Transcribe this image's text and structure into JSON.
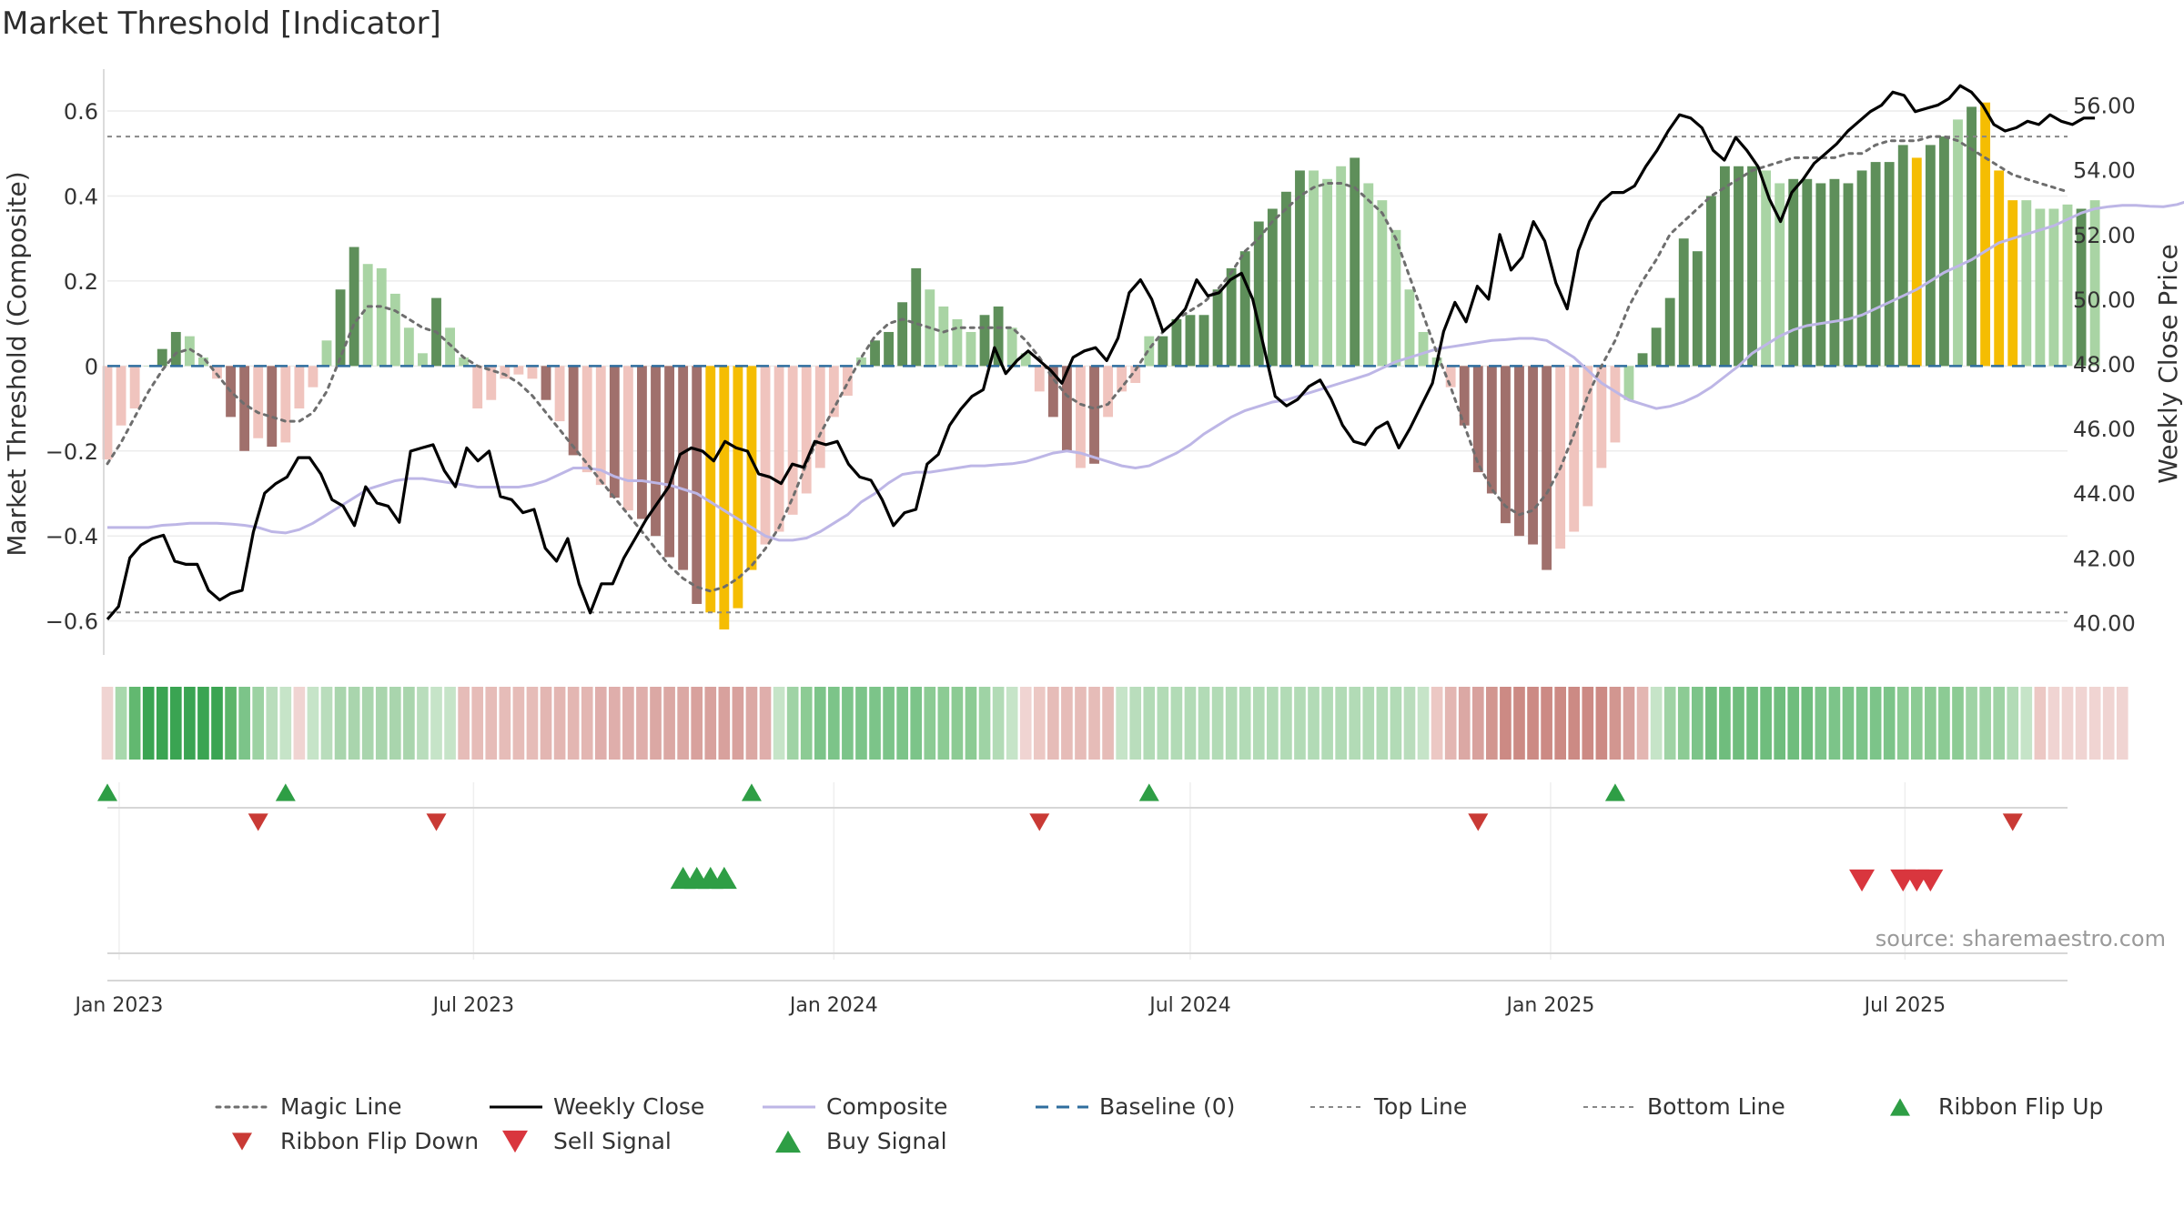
{
  "title": "Market Threshold [Indicator]",
  "source_note": "source: sharemaestro.com",
  "colors": {
    "pos_dark": "#5e8f5a",
    "pos_light": "#a9d4a4",
    "neg_dark": "#a0706c",
    "neg_light": "#f0c4be",
    "extreme": "#f5bd02",
    "magic": "#6e6e6e",
    "close": "#000000",
    "composite": "#bdb6e6",
    "baseline": "#2f6d9e",
    "threshold": "#888888",
    "buy": "#2e9e45",
    "sell": "#d9363e"
  },
  "chart_data": {
    "type": "bar",
    "title": "Market Threshold [Indicator]",
    "ylabel": "Market Threshold (Composite)",
    "y2label": "Weekly Close Price",
    "ylim": [
      -0.68,
      0.69
    ],
    "y2lim": [
      39.0,
      57.0
    ],
    "yticks": [
      -0.6,
      -0.4,
      -0.2,
      0,
      0.2,
      0.4,
      0.6
    ],
    "yticklabels": [
      "−0.6",
      "−0.4",
      "−0.2",
      "0",
      "0.2",
      "0.4",
      "0.6"
    ],
    "y2ticks": [
      40,
      42,
      44,
      46,
      48,
      50,
      52,
      54,
      56
    ],
    "y2ticklabels": [
      "40.00",
      "42.00",
      "44.00",
      "46.00",
      "48.00",
      "50.00",
      "52.00",
      "54.00",
      "56.00"
    ],
    "x_start": "2022-12-26",
    "x_step_days": 7,
    "xlim": [
      "2022-12-26",
      "2025-09-22"
    ],
    "xticks": [
      "2023-01-01",
      "2023-07-01",
      "2024-01-01",
      "2024-07-01",
      "2025-01-01",
      "2025-07-01"
    ],
    "xticklabels": [
      "Jan 2023",
      "Jul 2023",
      "Jan 2024",
      "Jul 2024",
      "Jan 2025",
      "Jul 2025"
    ],
    "top_line": 0.54,
    "bottom_line": -0.58,
    "grid": true,
    "legend_position": "bottom",
    "series": [
      {
        "name": "Composite Bars",
        "type": "bar",
        "values": [
          -0.22,
          -0.14,
          -0.1,
          0,
          0.04,
          0.08,
          0.07,
          0.02,
          -0.03,
          -0.12,
          -0.2,
          -0.17,
          -0.19,
          -0.18,
          -0.1,
          -0.05,
          0.06,
          0.18,
          0.28,
          0.24,
          0.23,
          0.17,
          0.09,
          0.03,
          0.16,
          0.09,
          0.02,
          -0.1,
          -0.08,
          -0.03,
          -0.02,
          -0.03,
          -0.08,
          -0.13,
          -0.21,
          -0.25,
          -0.28,
          -0.31,
          -0.34,
          -0.36,
          -0.4,
          -0.45,
          -0.48,
          -0.56,
          -0.58,
          -0.62,
          -0.57,
          -0.48,
          -0.42,
          -0.39,
          -0.35,
          -0.3,
          -0.24,
          -0.12,
          -0.07,
          0.02,
          0.06,
          0.08,
          0.15,
          0.23,
          0.18,
          0.14,
          0.11,
          0.08,
          0.12,
          0.14,
          0.09,
          0.03,
          -0.06,
          -0.12,
          -0.2,
          -0.24,
          -0.23,
          -0.12,
          -0.06,
          -0.04,
          0.07,
          0.07,
          0.11,
          0.12,
          0.12,
          0.18,
          0.23,
          0.27,
          0.34,
          0.37,
          0.41,
          0.46,
          0.46,
          0.44,
          0.47,
          0.49,
          0.43,
          0.39,
          0.32,
          0.18,
          0.08,
          0.02,
          -0.05,
          -0.14,
          -0.25,
          -0.3,
          -0.37,
          -0.4,
          -0.42,
          -0.48,
          -0.43,
          -0.39,
          -0.33,
          -0.24,
          -0.18,
          -0.08,
          0.03,
          0.09,
          0.16,
          0.3,
          0.27,
          0.4,
          0.47,
          0.47,
          0.47,
          0.46,
          0.43,
          0.44,
          0.44,
          0.43,
          0.44,
          0.43,
          0.46,
          0.48,
          0.48,
          0.52,
          0.49,
          0.52,
          0.54,
          0.58,
          0.61,
          0.62,
          0.46,
          0.39,
          0.39,
          0.37,
          0.37,
          0.38,
          0.37,
          0.39
        ],
        "colors": [
          "nl",
          "nl",
          "nl",
          "pl",
          "pd",
          "pd",
          "pl",
          "pl",
          "nl",
          "nd",
          "nd",
          "nl",
          "nd",
          "nl",
          "nl",
          "nl",
          "pl",
          "pd",
          "pd",
          "pl",
          "pl",
          "pl",
          "pl",
          "pl",
          "pd",
          "pl",
          "pl",
          "nl",
          "nl",
          "nl",
          "nl",
          "nl",
          "nd",
          "nl",
          "nd",
          "nl",
          "nl",
          "nd",
          "nl",
          "nd",
          "nd",
          "nd",
          "nd",
          "nd",
          "ex",
          "ex",
          "ex",
          "ex",
          "nl",
          "nl",
          "nl",
          "nl",
          "nl",
          "nl",
          "nl",
          "pl",
          "pd",
          "pd",
          "pd",
          "pd",
          "pl",
          "pl",
          "pl",
          "pl",
          "pd",
          "pd",
          "pl",
          "pl",
          "nl",
          "nd",
          "nd",
          "nl",
          "nd",
          "nl",
          "nl",
          "nl",
          "pl",
          "pd",
          "pd",
          "pd",
          "pd",
          "pd",
          "pd",
          "pd",
          "pd",
          "pd",
          "pd",
          "pd",
          "pl",
          "pl",
          "pl",
          "pd",
          "pl",
          "pl",
          "pl",
          "pl",
          "pl",
          "pl",
          "nl",
          "nd",
          "nd",
          "nd",
          "nd",
          "nd",
          "nd",
          "nd",
          "nl",
          "nl",
          "nl",
          "nl",
          "nl",
          "pl",
          "pd",
          "pd",
          "pd",
          "pd",
          "pd",
          "pd",
          "pd",
          "pd",
          "pd",
          "pl",
          "pl",
          "pd",
          "pd",
          "pd",
          "pd",
          "pd",
          "pd",
          "pd",
          "pd",
          "pd",
          "ex",
          "pd",
          "pd",
          "pl",
          "pd",
          "ex",
          "ex",
          "ex",
          "pl",
          "pl",
          "pl",
          "pl",
          "pd",
          "pl",
          "pl",
          "pd"
        ]
      },
      {
        "name": "Magic Line",
        "type": "line",
        "values": [
          -0.23,
          -0.18,
          -0.12,
          -0.06,
          -0.01,
          0.03,
          0.04,
          0.02,
          -0.02,
          -0.06,
          -0.09,
          -0.11,
          -0.12,
          -0.13,
          -0.13,
          -0.11,
          -0.06,
          0.02,
          0.1,
          0.14,
          0.14,
          0.13,
          0.11,
          0.09,
          0.08,
          0.05,
          0.02,
          0,
          -0.01,
          -0.02,
          -0.04,
          -0.07,
          -0.11,
          -0.15,
          -0.19,
          -0.23,
          -0.27,
          -0.31,
          -0.35,
          -0.39,
          -0.43,
          -0.47,
          -0.5,
          -0.52,
          -0.53,
          -0.52,
          -0.5,
          -0.47,
          -0.43,
          -0.38,
          -0.31,
          -0.23,
          -0.16,
          -0.1,
          -0.04,
          0.02,
          0.07,
          0.1,
          0.11,
          0.1,
          0.09,
          0.08,
          0.09,
          0.09,
          0.09,
          0.09,
          0.09,
          0.06,
          0.02,
          -0.03,
          -0.07,
          -0.09,
          -0.1,
          -0.09,
          -0.05,
          -0.01,
          0.04,
          0.08,
          0.11,
          0.13,
          0.15,
          0.18,
          0.22,
          0.27,
          0.3,
          0.34,
          0.37,
          0.4,
          0.42,
          0.43,
          0.43,
          0.42,
          0.39,
          0.36,
          0.3,
          0.21,
          0.12,
          0.03,
          -0.05,
          -0.14,
          -0.23,
          -0.29,
          -0.33,
          -0.35,
          -0.34,
          -0.3,
          -0.24,
          -0.16,
          -0.07,
          0,
          0.06,
          0.14,
          0.2,
          0.25,
          0.31,
          0.34,
          0.37,
          0.4,
          0.42,
          0.44,
          0.46,
          0.47,
          0.48,
          0.49,
          0.49,
          0.49,
          0.49,
          0.5,
          0.5,
          0.52,
          0.53,
          0.53,
          0.53,
          0.54,
          0.54,
          0.53,
          0.51,
          0.49,
          0.47,
          0.45,
          0.44,
          0.43,
          0.42,
          0.41
        ]
      },
      {
        "name": "Weekly Close",
        "type": "line",
        "axis": "y2",
        "values": [
          40.1,
          40.5,
          42.0,
          42.4,
          42.6,
          42.7,
          41.9,
          41.8,
          41.8,
          41.0,
          40.7,
          40.9,
          41.0,
          42.8,
          44.0,
          44.3,
          44.5,
          45.1,
          45.1,
          44.6,
          43.8,
          43.6,
          43.0,
          44.2,
          43.7,
          43.6,
          43.1,
          45.3,
          45.4,
          45.5,
          44.7,
          44.2,
          45.4,
          45.0,
          45.3,
          43.9,
          43.8,
          43.4,
          43.5,
          42.3,
          41.9,
          42.6,
          41.2,
          40.3,
          41.2,
          41.2,
          42.0,
          42.6,
          43.2,
          43.7,
          44.2,
          45.2,
          45.4,
          45.3,
          45.0,
          45.6,
          45.4,
          45.3,
          44.6,
          44.5,
          44.3,
          44.9,
          44.8,
          45.6,
          45.5,
          45.6,
          44.9,
          44.5,
          44.4,
          43.8,
          43.0,
          43.4,
          43.5,
          44.9,
          45.2,
          46.1,
          46.6,
          47.0,
          47.2,
          48.5,
          47.7,
          48.1,
          48.4,
          48.1,
          47.8,
          47.4,
          48.2,
          48.4,
          48.5,
          48.1,
          48.8,
          50.2,
          50.6,
          50.0,
          49.0,
          49.3,
          49.7,
          50.6,
          50.1,
          50.2,
          50.6,
          50.8,
          50.0,
          48.5,
          47.0,
          46.7,
          46.9,
          47.3,
          47.5,
          46.9,
          46.1,
          45.6,
          45.5,
          46.0,
          46.2,
          45.4,
          46.0,
          46.7,
          47.4,
          49.0,
          49.9,
          49.3,
          50.4,
          50.0,
          52.0,
          50.9,
          51.3,
          52.4,
          51.8,
          50.5,
          49.7,
          51.5,
          52.4,
          53.0,
          53.3,
          53.3,
          53.5,
          54.1,
          54.6,
          55.2,
          55.7,
          55.6,
          55.3,
          54.6,
          54.3,
          55.0,
          54.6,
          54.1,
          53.1,
          52.4,
          53.3,
          53.7,
          54.2,
          54.5,
          54.8,
          55.2,
          55.5,
          55.8,
          56.0,
          56.4,
          56.3,
          55.8,
          55.9,
          56.0,
          56.2,
          56.6,
          56.4,
          56.0,
          55.4,
          55.2,
          55.3,
          55.5,
          55.4,
          55.7,
          55.5,
          55.4,
          55.6,
          55.6
        ]
      },
      {
        "name": "Composite",
        "type": "line",
        "values": [
          -0.38,
          -0.38,
          -0.38,
          -0.38,
          -0.375,
          -0.373,
          -0.37,
          -0.37,
          -0.37,
          -0.372,
          -0.375,
          -0.38,
          -0.39,
          -0.393,
          -0.385,
          -0.37,
          -0.35,
          -0.33,
          -0.31,
          -0.29,
          -0.28,
          -0.27,
          -0.265,
          -0.265,
          -0.27,
          -0.275,
          -0.28,
          -0.285,
          -0.285,
          -0.285,
          -0.285,
          -0.28,
          -0.27,
          -0.255,
          -0.24,
          -0.24,
          -0.245,
          -0.26,
          -0.27,
          -0.27,
          -0.275,
          -0.28,
          -0.29,
          -0.3,
          -0.32,
          -0.34,
          -0.36,
          -0.38,
          -0.4,
          -0.41,
          -0.41,
          -0.405,
          -0.39,
          -0.37,
          -0.35,
          -0.32,
          -0.3,
          -0.275,
          -0.255,
          -0.25,
          -0.25,
          -0.245,
          -0.24,
          -0.235,
          -0.235,
          -0.232,
          -0.23,
          -0.225,
          -0.215,
          -0.205,
          -0.2,
          -0.205,
          -0.215,
          -0.225,
          -0.235,
          -0.24,
          -0.235,
          -0.22,
          -0.205,
          -0.185,
          -0.16,
          -0.14,
          -0.12,
          -0.105,
          -0.095,
          -0.085,
          -0.08,
          -0.07,
          -0.06,
          -0.05,
          -0.04,
          -0.03,
          -0.02,
          -0.005,
          0.01,
          0.02,
          0.03,
          0.04,
          0.045,
          0.05,
          0.055,
          0.06,
          0.062,
          0.065,
          0.065,
          0.06,
          0.04,
          0.02,
          -0.01,
          -0.04,
          -0.06,
          -0.08,
          -0.09,
          -0.1,
          -0.095,
          -0.085,
          -0.07,
          -0.05,
          -0.025,
          0,
          0.03,
          0.05,
          0.07,
          0.085,
          0.095,
          0.1,
          0.105,
          0.11,
          0.12,
          0.135,
          0.15,
          0.165,
          0.18,
          0.2,
          0.22,
          0.235,
          0.25,
          0.27,
          0.29,
          0.3,
          0.31,
          0.32,
          0.33,
          0.345,
          0.36,
          0.37,
          0.375,
          0.378,
          0.378,
          0.376,
          0.375,
          0.38,
          0.39,
          0.405,
          0.42,
          0.435,
          0.445,
          0.45
        ]
      }
    ],
    "ribbon": {
      "name": "Ribbon",
      "colors": [
        "#f0d4d2",
        "#a8d8ac",
        "#62b870",
        "#3aa452",
        "#3aa452",
        "#3aa452",
        "#3aa452",
        "#3aa452",
        "#3aa452",
        "#5cb56a",
        "#7cc489",
        "#9cd2a3",
        "#b9ddbc",
        "#c6e4c8",
        "#f0d4d2",
        "#c6e4c8",
        "#b9ddbc",
        "#a9d5ad",
        "#a9d5ad",
        "#a9d5ad",
        "#a9d5ad",
        "#a9d5ad",
        "#a9d5ad",
        "#b9ddbc",
        "#c6e4c8",
        "#c6e4c8",
        "#e6bcb8",
        "#e6bcb8",
        "#e6bcb8",
        "#e6bcb8",
        "#e6bcb8",
        "#e6bcb8",
        "#e3b6b2",
        "#e3b6b2",
        "#e3b6b2",
        "#e3b6b2",
        "#dfaeab",
        "#dfaeab",
        "#dfaeab",
        "#dfaeab",
        "#dba8a4",
        "#dba8a4",
        "#dba8a4",
        "#d8a19d",
        "#d8a19d",
        "#d8a19d",
        "#d8a19d",
        "#dba8a4",
        "#dfaeab",
        "#c6e4c8",
        "#9fd3a5",
        "#8ccb94",
        "#7cc489",
        "#7cc489",
        "#7cc489",
        "#7cc489",
        "#7cc489",
        "#7cc489",
        "#7cc489",
        "#7cc489",
        "#8ccb94",
        "#8ccb94",
        "#8ccb94",
        "#8ccb94",
        "#9fd3a5",
        "#b2dbb6",
        "#c6e4c8",
        "#f0d4d2",
        "#ecc8c4",
        "#e6bcb8",
        "#e6bcb8",
        "#e6bcb8",
        "#e6bcb8",
        "#e6bcb8",
        "#c6e4c8",
        "#b9ddbc",
        "#b2dbb6",
        "#b2dbb6",
        "#b2dbb6",
        "#b2dbb6",
        "#b2dbb6",
        "#b2dbb6",
        "#b2dbb6",
        "#b2dbb6",
        "#b2dbb6",
        "#b2dbb6",
        "#b2dbb6",
        "#b2dbb6",
        "#b2dbb6",
        "#b2dbb6",
        "#b2dbb6",
        "#b2dbb6",
        "#b2dbb6",
        "#b2dbb6",
        "#b2dbb6",
        "#b9ddbc",
        "#c6e4c8",
        "#ecc8c4",
        "#e3b6b2",
        "#dba8a4",
        "#d8a19d",
        "#d29690",
        "#cc8a84",
        "#cc8a84",
        "#cc8a84",
        "#cc8a84",
        "#cc8a84",
        "#cc8a84",
        "#cc8a84",
        "#cc8a84",
        "#d29690",
        "#d8a19d",
        "#e3b6b2",
        "#c6e4c8",
        "#9fd3a5",
        "#8ccb94",
        "#7cc489",
        "#6fbd7d",
        "#6fbd7d",
        "#6fbd7d",
        "#6fbd7d",
        "#6fbd7d",
        "#6fbd7d",
        "#6fbd7d",
        "#6fbd7d",
        "#7cc489",
        "#7cc489",
        "#7cc489",
        "#7cc489",
        "#7cc489",
        "#7cc489",
        "#8ccb94",
        "#8ccb94",
        "#8ccb94",
        "#8ccb94",
        "#8ccb94",
        "#9fd3a5",
        "#9fd3a5",
        "#9fd3a5",
        "#b2dbb6",
        "#c6e4c8",
        "#ecc8c4",
        "#f0d4d2",
        "#f0d4d2",
        "#f0d4d2",
        "#f0d4d2",
        "#f0d4d2",
        "#f0d4d2"
      ]
    },
    "ribbon_flip_up": [
      "2022-12-26",
      "2023-03-27",
      "2023-11-20",
      "2024-06-10",
      "2025-02-03"
    ],
    "ribbon_flip_down": [
      "2023-03-13",
      "2023-06-12",
      "2024-04-15",
      "2024-11-25",
      "2025-08-25"
    ],
    "buy_signal": [
      "2023-10-16",
      "2023-10-23",
      "2023-10-30",
      "2023-11-06"
    ],
    "sell_signal": [
      "2025-06-09",
      "2025-06-30",
      "2025-07-07",
      "2025-07-14"
    ],
    "legend": [
      {
        "label": "Magic Line",
        "kind": "dotted",
        "color": "#6e6e6e"
      },
      {
        "label": "Weekly Close",
        "kind": "solid",
        "color": "#000000"
      },
      {
        "label": "Composite",
        "kind": "solid",
        "color": "#bdb6e6"
      },
      {
        "label": "Baseline (0)",
        "kind": "dashed",
        "color": "#2f6d9e"
      },
      {
        "label": "Top Line",
        "kind": "dotted-thin",
        "color": "#888888"
      },
      {
        "label": "Bottom Line",
        "kind": "dotted-thin",
        "color": "#888888"
      },
      {
        "label": "Ribbon Flip Up",
        "kind": "tri-up",
        "color": "#2e9e45"
      },
      {
        "label": "Ribbon Flip Down",
        "kind": "tri-down",
        "color": "#c93a35"
      },
      {
        "label": "Sell Signal",
        "kind": "tri-down-big",
        "color": "#d9363e"
      },
      {
        "label": "Buy Signal",
        "kind": "tri-up-big",
        "color": "#2e9e45"
      }
    ]
  }
}
